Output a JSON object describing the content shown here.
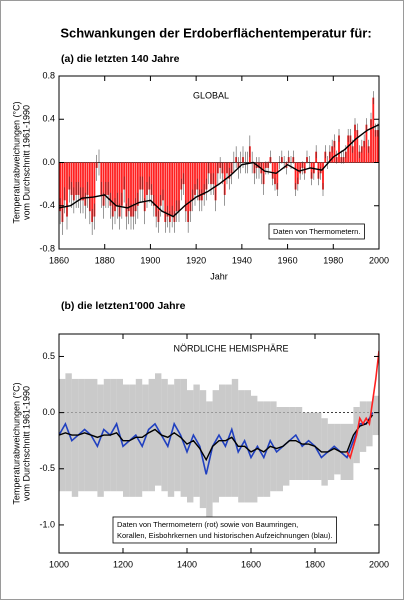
{
  "title": "Schwankungen der Erdoberflächentemperatur für:",
  "chart_data": [
    {
      "type": "bar",
      "subtitle": "(a) die letzten 140 Jahre",
      "annotation": "GLOBAL",
      "note": [
        "Daten von Thermometern."
      ],
      "ylabel": [
        "Temperaturabweichungen (°C)",
        "vom Durchschnitt 1961-1990"
      ],
      "xlabel": "Jahr",
      "x": [
        1861,
        1862,
        1863,
        1864,
        1865,
        1866,
        1867,
        1868,
        1869,
        1870,
        1871,
        1872,
        1873,
        1874,
        1875,
        1876,
        1877,
        1878,
        1879,
        1880,
        1881,
        1882,
        1883,
        1884,
        1885,
        1886,
        1887,
        1888,
        1889,
        1890,
        1891,
        1892,
        1893,
        1894,
        1895,
        1896,
        1897,
        1898,
        1899,
        1900,
        1901,
        1902,
        1903,
        1904,
        1905,
        1906,
        1907,
        1908,
        1909,
        1910,
        1911,
        1912,
        1913,
        1914,
        1915,
        1916,
        1917,
        1918,
        1919,
        1920,
        1921,
        1922,
        1923,
        1924,
        1925,
        1926,
        1927,
        1928,
        1929,
        1930,
        1931,
        1932,
        1933,
        1934,
        1935,
        1936,
        1937,
        1938,
        1939,
        1940,
        1941,
        1942,
        1943,
        1944,
        1945,
        1946,
        1947,
        1948,
        1949,
        1950,
        1951,
        1952,
        1953,
        1954,
        1955,
        1956,
        1957,
        1958,
        1959,
        1960,
        1961,
        1962,
        1963,
        1964,
        1965,
        1966,
        1967,
        1968,
        1969,
        1970,
        1971,
        1972,
        1973,
        1974,
        1975,
        1976,
        1977,
        1978,
        1979,
        1980,
        1981,
        1982,
        1983,
        1984,
        1985,
        1986,
        1987,
        1988,
        1989,
        1990,
        1991,
        1992,
        1993,
        1994,
        1995,
        1996,
        1997,
        1998,
        1999,
        2000
      ],
      "values": [
        -0.45,
        -0.55,
        -0.35,
        -0.5,
        -0.25,
        -0.3,
        -0.35,
        -0.3,
        -0.3,
        -0.35,
        -0.35,
        -0.4,
        -0.3,
        -0.45,
        -0.55,
        -0.5,
        -0.05,
        0.0,
        -0.3,
        -0.4,
        -0.3,
        -0.3,
        -0.4,
        -0.5,
        -0.45,
        -0.4,
        -0.5,
        -0.4,
        -0.25,
        -0.5,
        -0.45,
        -0.5,
        -0.5,
        -0.45,
        -0.4,
        -0.25,
        -0.25,
        -0.45,
        -0.3,
        -0.25,
        -0.3,
        -0.4,
        -0.5,
        -0.55,
        -0.4,
        -0.35,
        -0.55,
        -0.5,
        -0.55,
        -0.5,
        -0.55,
        -0.45,
        -0.45,
        -0.25,
        -0.2,
        -0.45,
        -0.55,
        -0.45,
        -0.35,
        -0.3,
        -0.25,
        -0.35,
        -0.35,
        -0.3,
        -0.25,
        -0.1,
        -0.2,
        -0.2,
        -0.35,
        -0.1,
        -0.05,
        -0.1,
        -0.3,
        -0.1,
        -0.15,
        -0.1,
        0.0,
        0.05,
        -0.05,
        0.0,
        0.05,
        0.0,
        0.0,
        0.15,
        0.0,
        -0.1,
        -0.05,
        -0.05,
        -0.1,
        -0.2,
        -0.05,
        -0.05,
        0.05,
        -0.15,
        -0.2,
        -0.25,
        0.0,
        0.05,
        0.0,
        -0.05,
        0.05,
        0.0,
        0.05,
        -0.25,
        -0.2,
        -0.1,
        -0.05,
        -0.1,
        0.05,
        0.0,
        -0.15,
        -0.1,
        0.1,
        -0.15,
        -0.1,
        -0.25,
        0.1,
        0.0,
        0.1,
        0.15,
        0.2,
        0.05,
        0.25,
        0.05,
        0.05,
        0.1,
        0.25,
        0.25,
        0.15,
        0.35,
        0.3,
        0.1,
        0.15,
        0.2,
        0.35,
        0.15,
        0.4,
        0.6,
        0.3,
        0.3
      ],
      "errors": [
        0.12,
        0.12,
        0.12,
        0.12,
        0.12,
        0.12,
        0.12,
        0.12,
        0.12,
        0.12,
        0.12,
        0.12,
        0.12,
        0.12,
        0.12,
        0.12,
        0.12,
        0.12,
        0.12,
        0.12,
        0.12,
        0.12,
        0.12,
        0.12,
        0.12,
        0.12,
        0.12,
        0.12,
        0.12,
        0.12,
        0.12,
        0.12,
        0.12,
        0.12,
        0.12,
        0.12,
        0.12,
        0.12,
        0.12,
        0.12,
        0.1,
        0.1,
        0.1,
        0.1,
        0.1,
        0.1,
        0.1,
        0.1,
        0.1,
        0.1,
        0.1,
        0.1,
        0.1,
        0.1,
        0.1,
        0.1,
        0.1,
        0.1,
        0.1,
        0.1,
        0.1,
        0.1,
        0.1,
        0.1,
        0.1,
        0.1,
        0.1,
        0.1,
        0.1,
        0.1,
        0.1,
        0.1,
        0.1,
        0.1,
        0.1,
        0.1,
        0.1,
        0.1,
        0.1,
        0.1,
        0.1,
        0.1,
        0.1,
        0.1,
        0.1,
        0.1,
        0.1,
        0.1,
        0.1,
        0.1,
        0.06,
        0.06,
        0.06,
        0.06,
        0.06,
        0.06,
        0.06,
        0.06,
        0.06,
        0.06,
        0.06,
        0.06,
        0.06,
        0.06,
        0.06,
        0.06,
        0.06,
        0.06,
        0.06,
        0.06,
        0.06,
        0.06,
        0.06,
        0.06,
        0.06,
        0.06,
        0.06,
        0.06,
        0.06,
        0.06,
        0.06,
        0.06,
        0.06,
        0.06,
        0.06,
        0.06,
        0.06,
        0.06,
        0.06,
        0.06,
        0.06,
        0.06,
        0.06,
        0.06,
        0.06,
        0.06,
        0.06,
        0.06,
        0.06,
        0.06
      ],
      "color": "#ff2020",
      "smooth": {
        "color": "#000000",
        "x": [
          1860,
          1865,
          1870,
          1875,
          1880,
          1885,
          1890,
          1895,
          1900,
          1905,
          1910,
          1915,
          1920,
          1925,
          1930,
          1935,
          1940,
          1945,
          1950,
          1955,
          1960,
          1965,
          1970,
          1975,
          1980,
          1985,
          1990,
          1995,
          2000
        ],
        "values": [
          -0.42,
          -0.4,
          -0.33,
          -0.32,
          -0.3,
          -0.4,
          -0.42,
          -0.37,
          -0.35,
          -0.45,
          -0.5,
          -0.4,
          -0.32,
          -0.27,
          -0.2,
          -0.12,
          -0.02,
          0.0,
          -0.08,
          -0.1,
          -0.02,
          -0.08,
          -0.05,
          -0.07,
          0.05,
          0.12,
          0.22,
          0.3,
          0.35
        ]
      },
      "xlim": [
        1860,
        2000
      ],
      "xticks": [
        1860,
        1880,
        1900,
        1920,
        1940,
        1960,
        1980,
        2000
      ],
      "ylim": [
        -0.8,
        0.8
      ],
      "yticks": [
        -0.8,
        -0.4,
        {
          "value": 0,
          "label": "0.0"
        },
        0.4,
        0.8
      ]
    },
    {
      "type": "line",
      "subtitle": "(b) die letzten1'000 Jahre",
      "annotation": "NÖRDLICHE HEMISPHÄRE",
      "note": [
        "Daten von Thermometern (rot) sowie von Baumringen,",
        "Korallen, Eisbohrkernen und historischen Aufzeichnungen (blau)."
      ],
      "ylabel": [
        "Temperaturabweichungen (°C)",
        "vom Durchschnitt 1961-1990"
      ],
      "band": {
        "color": "#b8b8b8",
        "x": [
          1000,
          1020,
          1040,
          1060,
          1080,
          1100,
          1120,
          1140,
          1160,
          1180,
          1200,
          1220,
          1240,
          1260,
          1280,
          1300,
          1320,
          1340,
          1360,
          1380,
          1400,
          1420,
          1440,
          1460,
          1480,
          1500,
          1520,
          1540,
          1560,
          1580,
          1600,
          1620,
          1640,
          1660,
          1680,
          1700,
          1720,
          1740,
          1760,
          1780,
          1800,
          1820,
          1840,
          1860,
          1880,
          1900,
          1920,
          1940,
          1960,
          1980
        ],
        "upper": [
          0.3,
          0.35,
          0.3,
          0.3,
          0.3,
          0.3,
          0.25,
          0.3,
          0.3,
          0.3,
          0.25,
          0.25,
          0.3,
          0.25,
          0.3,
          0.35,
          0.3,
          0.25,
          0.3,
          0.3,
          0.2,
          0.25,
          0.2,
          0.1,
          0.2,
          0.25,
          0.25,
          0.3,
          0.2,
          0.2,
          0.15,
          0.1,
          0.1,
          0.1,
          0.05,
          0.05,
          0.05,
          0.05,
          0.0,
          0.0,
          0.0,
          -0.05,
          -0.1,
          -0.1,
          -0.1,
          -0.1,
          0.05,
          0.1,
          0.1,
          0.15
        ],
        "lower": [
          -0.7,
          -0.7,
          -0.75,
          -0.7,
          -0.7,
          -0.7,
          -0.75,
          -0.7,
          -0.7,
          -0.7,
          -0.75,
          -0.75,
          -0.75,
          -0.7,
          -0.7,
          -0.65,
          -0.7,
          -0.75,
          -0.7,
          -0.75,
          -0.8,
          -0.75,
          -0.85,
          -0.95,
          -0.8,
          -0.75,
          -0.75,
          -0.75,
          -0.8,
          -0.8,
          -0.8,
          -0.75,
          -0.75,
          -0.7,
          -0.7,
          -0.65,
          -0.6,
          -0.6,
          -0.6,
          -0.6,
          -0.6,
          -0.65,
          -0.6,
          -0.55,
          -0.6,
          -0.6,
          -0.45,
          -0.35,
          -0.3,
          -0.2
        ]
      },
      "series": [
        {
          "color": "#2040c0",
          "width": 1.6,
          "x": [
            1000,
            1020,
            1040,
            1060,
            1080,
            1100,
            1120,
            1140,
            1160,
            1180,
            1200,
            1220,
            1240,
            1260,
            1280,
            1300,
            1320,
            1340,
            1360,
            1380,
            1400,
            1420,
            1440,
            1460,
            1480,
            1500,
            1520,
            1540,
            1560,
            1580,
            1600,
            1620,
            1640,
            1660,
            1680,
            1700,
            1720,
            1740,
            1760,
            1780,
            1800,
            1820,
            1840,
            1860,
            1880,
            1900,
            1920,
            1940,
            1960,
            1980
          ],
          "values": [
            -0.2,
            -0.1,
            -0.25,
            -0.2,
            -0.15,
            -0.2,
            -0.3,
            -0.15,
            -0.2,
            -0.1,
            -0.3,
            -0.25,
            -0.2,
            -0.3,
            -0.15,
            -0.1,
            -0.2,
            -0.3,
            -0.1,
            -0.2,
            -0.35,
            -0.2,
            -0.3,
            -0.55,
            -0.3,
            -0.2,
            -0.3,
            -0.15,
            -0.35,
            -0.25,
            -0.4,
            -0.3,
            -0.4,
            -0.25,
            -0.35,
            -0.3,
            -0.25,
            -0.2,
            -0.3,
            -0.25,
            -0.3,
            -0.4,
            -0.35,
            -0.3,
            -0.35,
            -0.4,
            -0.25,
            -0.1,
            -0.1,
            0.0
          ]
        },
        {
          "color": "#000000",
          "width": 1.4,
          "x": [
            1000,
            1020,
            1040,
            1060,
            1080,
            1100,
            1120,
            1140,
            1160,
            1180,
            1200,
            1220,
            1240,
            1260,
            1280,
            1300,
            1320,
            1340,
            1360,
            1380,
            1400,
            1420,
            1440,
            1460,
            1480,
            1500,
            1520,
            1540,
            1560,
            1580,
            1600,
            1620,
            1640,
            1660,
            1680,
            1700,
            1720,
            1740,
            1760,
            1780,
            1800,
            1820,
            1840,
            1860,
            1880,
            1900,
            1920,
            1940,
            1960,
            1980
          ],
          "values": [
            -0.2,
            -0.18,
            -0.2,
            -0.2,
            -0.18,
            -0.2,
            -0.22,
            -0.2,
            -0.2,
            -0.18,
            -0.25,
            -0.25,
            -0.22,
            -0.22,
            -0.18,
            -0.15,
            -0.2,
            -0.22,
            -0.18,
            -0.22,
            -0.28,
            -0.25,
            -0.32,
            -0.42,
            -0.3,
            -0.25,
            -0.25,
            -0.22,
            -0.3,
            -0.3,
            -0.35,
            -0.32,
            -0.35,
            -0.3,
            -0.32,
            -0.3,
            -0.25,
            -0.25,
            -0.28,
            -0.28,
            -0.3,
            -0.35,
            -0.35,
            -0.32,
            -0.35,
            -0.35,
            -0.2,
            -0.12,
            -0.1,
            -0.02
          ]
        },
        {
          "color": "#ff2020",
          "width": 1.6,
          "x": [
            1900,
            1910,
            1920,
            1930,
            1940,
            1950,
            1960,
            1970,
            1980,
            1990,
            2000
          ],
          "values": [
            -0.35,
            -0.4,
            -0.3,
            -0.2,
            -0.05,
            -0.1,
            -0.05,
            -0.1,
            0.1,
            0.3,
            0.55
          ]
        }
      ],
      "xlim": [
        1000,
        2000
      ],
      "xticks": [
        1000,
        1200,
        1400,
        1600,
        1800,
        2000
      ],
      "ylim": [
        -1.25,
        0.7
      ],
      "yticks": [
        {
          "value": -1,
          "label": "-1.0"
        },
        -0.5,
        {
          "value": 0,
          "label": "0.0"
        },
        0.5
      ]
    }
  ]
}
